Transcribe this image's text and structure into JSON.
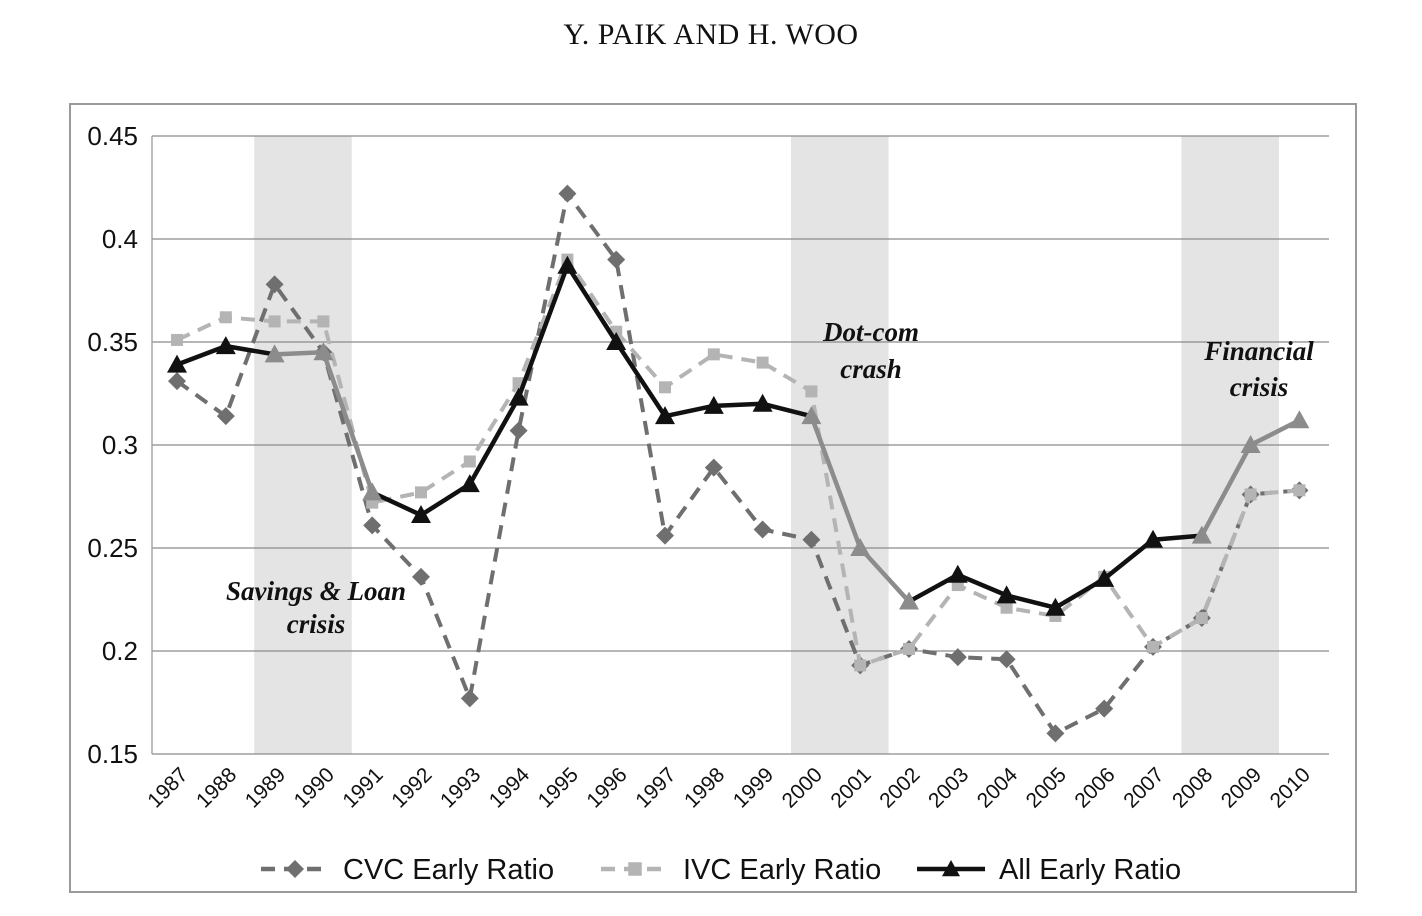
{
  "header": {
    "running_head": "Y. PAIK AND H. WOO"
  },
  "colors": {
    "cvc": "#6f6f6f",
    "ivc": "#b4b4b4",
    "all_line": "#111111",
    "all_line_in_crisis": "#8c8c8c",
    "crisis_band": "#e4e4e4",
    "grid": "#8a8a8a",
    "frame": "#9a9a9a"
  },
  "chart_data": {
    "type": "line",
    "title": "",
    "xlabel": "",
    "ylabel": "",
    "x": [
      "1987",
      "1988",
      "1989",
      "1990",
      "1991",
      "1992",
      "1993",
      "1994",
      "1995",
      "1996",
      "1997",
      "1998",
      "1999",
      "2000",
      "2001",
      "2002",
      "2003",
      "2004",
      "2005",
      "2006",
      "2007",
      "2008",
      "2009",
      "2010"
    ],
    "ylim": [
      0.15,
      0.45
    ],
    "yticks": [
      "0.15",
      "0.2",
      "0.25",
      "0.3",
      "0.35",
      "0.4",
      "0.45"
    ],
    "grid": "horizontal",
    "legend_position": "bottom",
    "series": [
      {
        "name": "CVC Early Ratio",
        "style": "dashed",
        "marker": "diamond",
        "values": [
          0.331,
          0.314,
          0.378,
          0.345,
          0.261,
          0.236,
          0.177,
          0.307,
          0.422,
          0.39,
          0.256,
          0.289,
          0.259,
          0.254,
          0.193,
          0.201,
          0.197,
          0.196,
          0.16,
          0.172,
          0.202,
          0.216,
          0.276,
          0.278
        ]
      },
      {
        "name": "IVC Early Ratio",
        "style": "dashed",
        "marker": "square",
        "values": [
          0.351,
          0.362,
          0.36,
          0.36,
          0.272,
          0.277,
          0.292,
          0.33,
          0.39,
          0.355,
          0.328,
          0.344,
          0.34,
          0.326,
          0.193,
          0.201,
          0.232,
          0.221,
          0.217,
          0.236,
          0.202,
          0.216,
          0.276,
          0.278
        ]
      },
      {
        "name": "All Early Ratio",
        "style": "solid",
        "marker": "triangle",
        "values": [
          0.339,
          0.348,
          0.344,
          0.345,
          0.277,
          0.266,
          0.281,
          0.323,
          0.387,
          0.35,
          0.314,
          0.319,
          0.32,
          0.314,
          0.25,
          0.224,
          0.237,
          0.227,
          0.221,
          0.235,
          0.254,
          0.256,
          0.3,
          0.312
        ]
      }
    ],
    "shaded_periods": [
      {
        "start": "1989",
        "end": "1991",
        "label_lines": [
          "Savings & Loan",
          "crisis"
        ]
      },
      {
        "start": "2000",
        "end": "2002",
        "label_lines": [
          "Dot-com",
          "crash"
        ]
      },
      {
        "start": "2008",
        "end": "2010",
        "label_lines": [
          "Financial",
          "crisis"
        ]
      }
    ]
  }
}
